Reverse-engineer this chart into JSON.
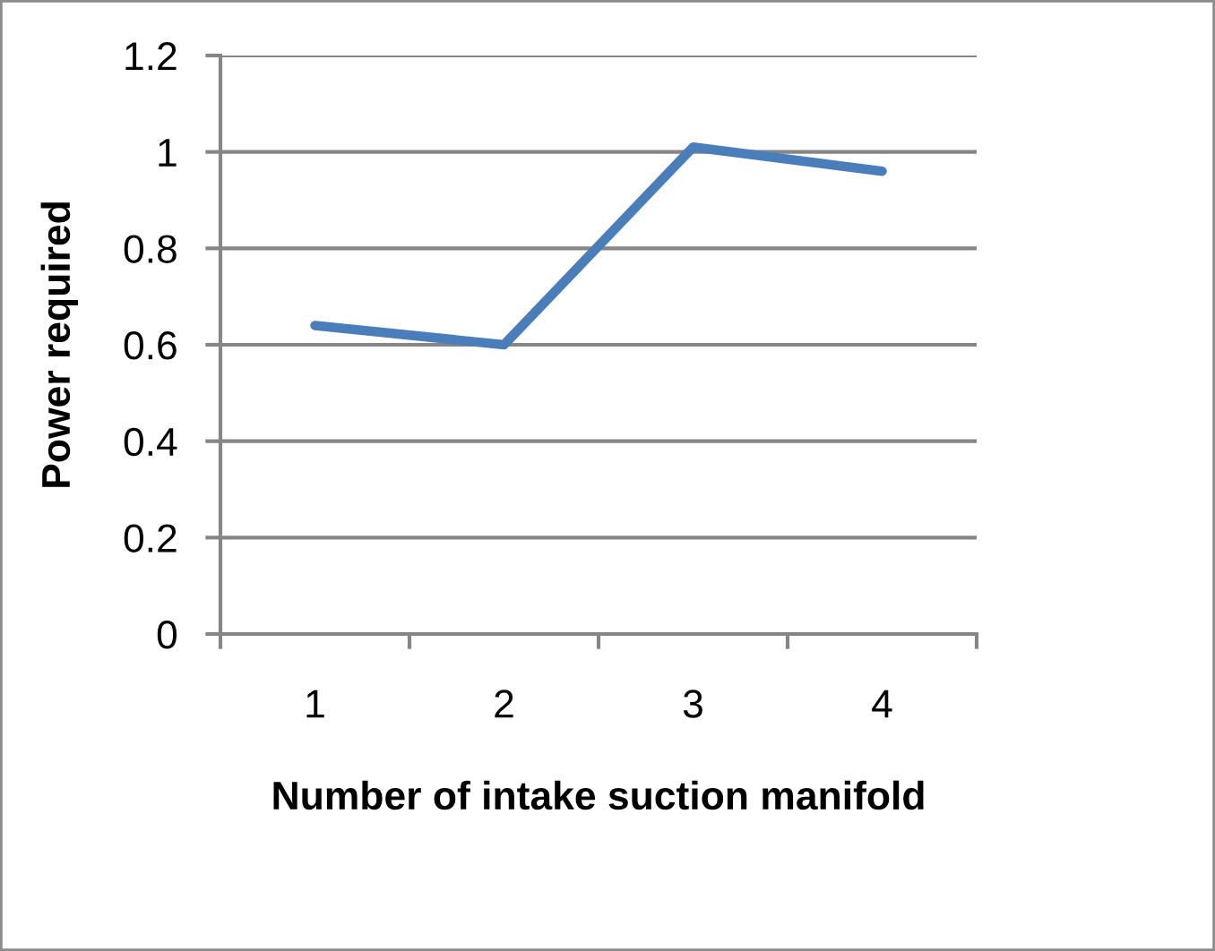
{
  "chart_data": {
    "type": "line",
    "xlabel": "Number of intake suction manifold",
    "ylabel": "Power required",
    "categories": [
      "1",
      "2",
      "3",
      "4"
    ],
    "series": [
      {
        "color": "#4a7ebb",
        "values": [
          0.64,
          0.6,
          1.01,
          0.96
        ]
      }
    ],
    "ylim": [
      0,
      1.2
    ],
    "yticks": [
      0,
      0.2,
      0.4,
      0.6,
      0.8,
      1,
      1.2
    ],
    "grid": "y",
    "marker": "none",
    "line_style": "solid"
  }
}
